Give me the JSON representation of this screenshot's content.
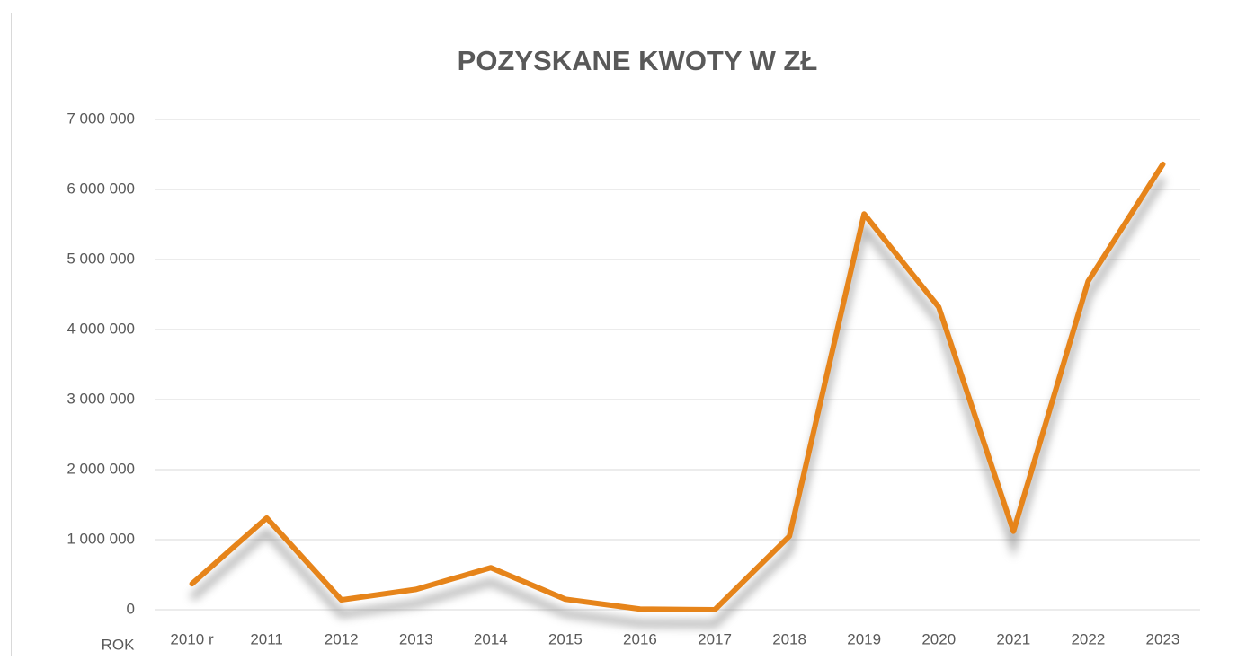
{
  "chart_data": {
    "type": "line",
    "title": "POZYSKANE KWOTY W ZŁ",
    "x_label": "ROK",
    "categories": [
      "2010 r",
      "2011",
      "2012",
      "2013",
      "2014",
      "2015",
      "2016",
      "2017",
      "2018",
      "2019",
      "2020",
      "2021",
      "2022",
      "2023"
    ],
    "series": [
      {
        "name": "POZYSKANE KWOTY W ZŁ",
        "color": "#e6841a",
        "values": [
          370000,
          1310000,
          140000,
          290000,
          600000,
          150000,
          10000,
          0,
          1050000,
          5650000,
          4320000,
          1120000,
          4690000,
          6360000
        ]
      }
    ],
    "ylim": [
      0,
      7000000
    ],
    "yticks": [
      0,
      {
        "value": 1000000,
        "label": "1 000 000"
      },
      {
        "value": 2000000,
        "label": "2 000 000"
      },
      {
        "value": 3000000,
        "label": "3 000 000"
      },
      {
        "value": 4000000,
        "label": "4 000 000"
      },
      {
        "value": 5000000,
        "label": "5 000 000"
      },
      {
        "value": 6000000,
        "label": "6 000 000"
      },
      {
        "value": 7000000,
        "label": "7 000 000"
      }
    ],
    "grid": true
  }
}
